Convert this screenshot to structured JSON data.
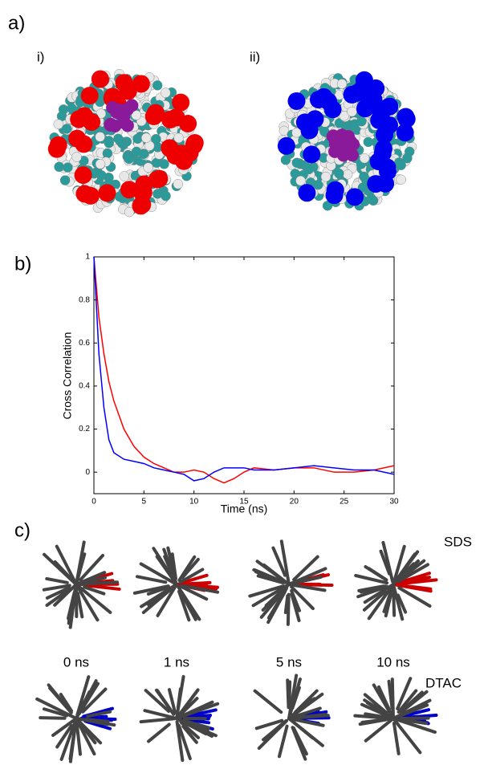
{
  "figure": {
    "panel_a": "a)",
    "panel_a_i": "i)",
    "panel_a_ii": "ii)",
    "panel_b": "b)",
    "panel_c": "c)",
    "row_sds": "SDS",
    "row_dtac": "DTAC",
    "times": [
      "0 ns",
      "1 ns",
      "5 ns",
      "10 ns"
    ]
  },
  "chart_data": {
    "type": "line",
    "x_label": "Time (ns)",
    "y_label": "Cross Correlation",
    "x": [
      0,
      0.5,
      1,
      1.5,
      2,
      3,
      4,
      5,
      6,
      7,
      8,
      9,
      10,
      11,
      12,
      13,
      14,
      15,
      16,
      18,
      20,
      22,
      24,
      26,
      28,
      30
    ],
    "series": [
      {
        "color": "#ff0000",
        "values": [
          1,
          0.72,
          0.55,
          0.42,
          0.33,
          0.2,
          0.12,
          0.07,
          0.04,
          0.02,
          0.0,
          0.0,
          0.01,
          0.0,
          -0.03,
          -0.05,
          -0.03,
          0.0,
          0.02,
          0.01,
          0.02,
          0.02,
          0.0,
          0.0,
          0.01,
          0.03
        ]
      },
      {
        "color": "#0000ff",
        "values": [
          1,
          0.55,
          0.3,
          0.15,
          0.09,
          0.06,
          0.05,
          0.04,
          0.02,
          0.01,
          0.0,
          -0.01,
          -0.04,
          -0.03,
          0.0,
          0.02,
          0.02,
          0.02,
          0.01,
          0.01,
          0.02,
          0.03,
          0.02,
          0.01,
          0.01,
          -0.01
        ]
      }
    ],
    "xlim": [
      0,
      30
    ],
    "ylim": [
      -0.1,
      1
    ],
    "xticks": [
      0,
      5,
      10,
      15,
      20,
      25,
      30
    ],
    "yticks": [
      0,
      0.2,
      0.4,
      0.6,
      0.8,
      1
    ]
  }
}
